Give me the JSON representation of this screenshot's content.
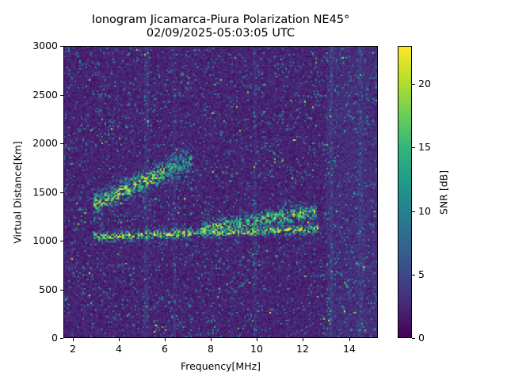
{
  "chart_data": {
    "type": "heatmap",
    "title": "Ionogram Jicamarca-Piura Polarization NE45°",
    "subtitle": "02/09/2025-05:03:05 UTC",
    "xlabel": "Frequency[MHz]",
    "ylabel": "Virtual Distance[Km]",
    "colorbar_label": "SNR [dB]",
    "colormap": "viridis",
    "xlim": [
      1.6,
      15.25
    ],
    "ylim": [
      0,
      3000
    ],
    "clim": [
      0,
      23
    ],
    "x_ticks": [
      2,
      4,
      6,
      8,
      10,
      12,
      14
    ],
    "y_ticks": [
      0,
      500,
      1000,
      1500,
      2000,
      2500,
      3000
    ],
    "colorbar_ticks": [
      0,
      5,
      10,
      15,
      20
    ],
    "grid": false,
    "background_snr_db": 1,
    "echo_traces": [
      {
        "name": "F-layer 1-hop trace",
        "freq_start": 2.9,
        "freq_end": 12.7,
        "distance_start_km": 1040,
        "distance_end_km": 1120,
        "peak_snr_db": 23,
        "spread_km": 40
      },
      {
        "name": "F-layer enhanced region",
        "freq_start": 7.6,
        "freq_end": 12.6,
        "distance_start_km": 1120,
        "distance_end_km": 1300,
        "peak_snr_db": 20,
        "spread_km": 70
      },
      {
        "name": "Upper trace (2-hop/oblique)",
        "freq_start": 2.9,
        "freq_end": 6.0,
        "distance_start_km": 1380,
        "distance_end_km": 1700,
        "peak_snr_db": 22,
        "spread_km": 90
      },
      {
        "name": "Upper trace extension",
        "freq_start": 6.0,
        "freq_end": 7.2,
        "distance_start_km": 1700,
        "distance_end_km": 1850,
        "peak_snr_db": 15,
        "spread_km": 120
      }
    ],
    "interference_lines_mhz": [
      5.2,
      6.4,
      9.9,
      13.2,
      14.5
    ]
  }
}
